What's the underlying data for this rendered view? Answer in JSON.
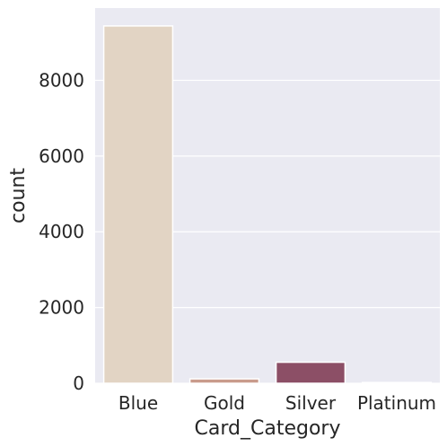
{
  "chart_data": {
    "type": "bar",
    "categories": [
      "Blue",
      "Gold",
      "Silver",
      "Platinum"
    ],
    "values": [
      9436,
      116,
      555,
      20
    ],
    "xlabel": "Card_Category",
    "ylabel": "count",
    "ylim": [
      0,
      9908
    ],
    "yticks": [
      "0",
      "2000",
      "4000",
      "6000",
      "8000"
    ],
    "ytick_values": [
      0,
      2000,
      4000,
      6000,
      8000
    ],
    "grid": true,
    "legend": "none",
    "colors": {
      "background": "#eaeaf2",
      "grid": "#ffffff",
      "bar_edge": "#ffffff",
      "bars": [
        "#e2d4c4",
        "#c99b8c",
        "#8c4f66",
        "#3e2246"
      ]
    }
  }
}
